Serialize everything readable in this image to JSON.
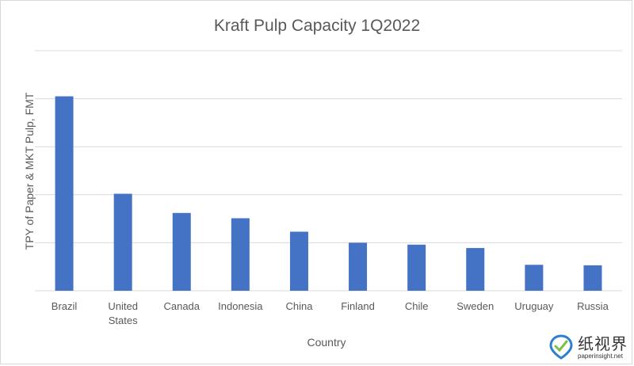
{
  "chart_data": {
    "type": "bar",
    "title": "Kraft Pulp Capacity 1Q2022",
    "xlabel": "Country",
    "ylabel": "TPY of Paper & MKT Pulp, FMT",
    "categories": [
      [
        "Brazil"
      ],
      [
        "United",
        "States"
      ],
      [
        "Canada"
      ],
      [
        "Indonesia"
      ],
      [
        "China"
      ],
      [
        "Finland"
      ],
      [
        "Chile"
      ],
      [
        "Sweden"
      ],
      [
        "Uruguay"
      ],
      [
        "Russia"
      ]
    ],
    "values": [
      4.05,
      2.02,
      1.62,
      1.51,
      1.23,
      1.0,
      0.96,
      0.89,
      0.54,
      0.53
    ],
    "ylim": [
      0,
      5
    ],
    "yticks": [
      0,
      1,
      2,
      3,
      4,
      5
    ],
    "y_tick_labels_shown": false,
    "grid": true,
    "bar_color": "#4472C4",
    "grid_color": "#d9d9d9"
  },
  "watermark": {
    "brand": "纸视界",
    "site": "paperinsight.net",
    "colors": {
      "blue": "#2f7fd0",
      "green": "#7ac143"
    }
  }
}
